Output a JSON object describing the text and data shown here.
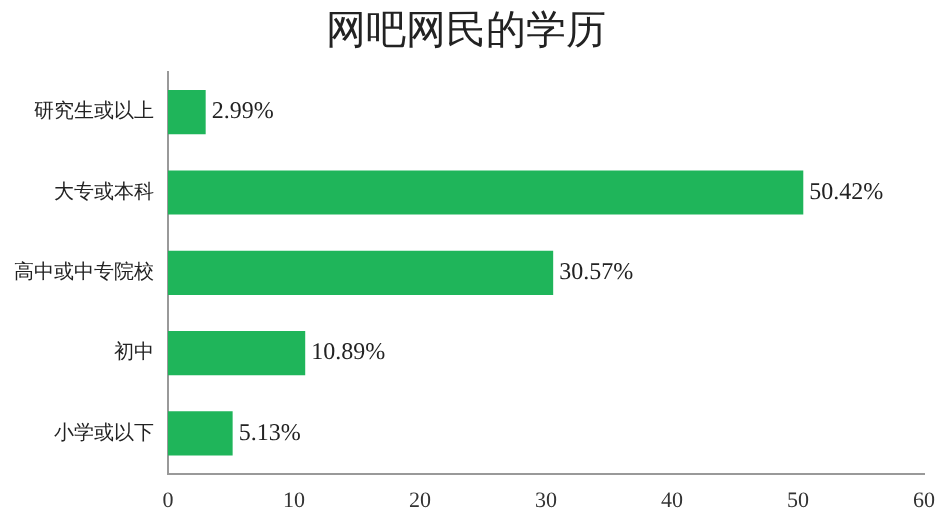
{
  "chart_data": {
    "type": "bar",
    "orientation": "horizontal",
    "title": "网吧网民的学历",
    "categories": [
      "研究生或以上",
      "大专或本科",
      "高中或中专院校",
      "初中",
      "小学或以下"
    ],
    "values": [
      2.99,
      50.42,
      30.57,
      10.89,
      5.13
    ],
    "value_labels": [
      "2.99%",
      "50.42%",
      "30.57%",
      "10.89%",
      "5.13%"
    ],
    "color": "#1fb55a",
    "xlim": [
      0,
      60
    ],
    "xticks": [
      0,
      10,
      20,
      30,
      40,
      50,
      60
    ],
    "grid": false,
    "legend": false
  }
}
